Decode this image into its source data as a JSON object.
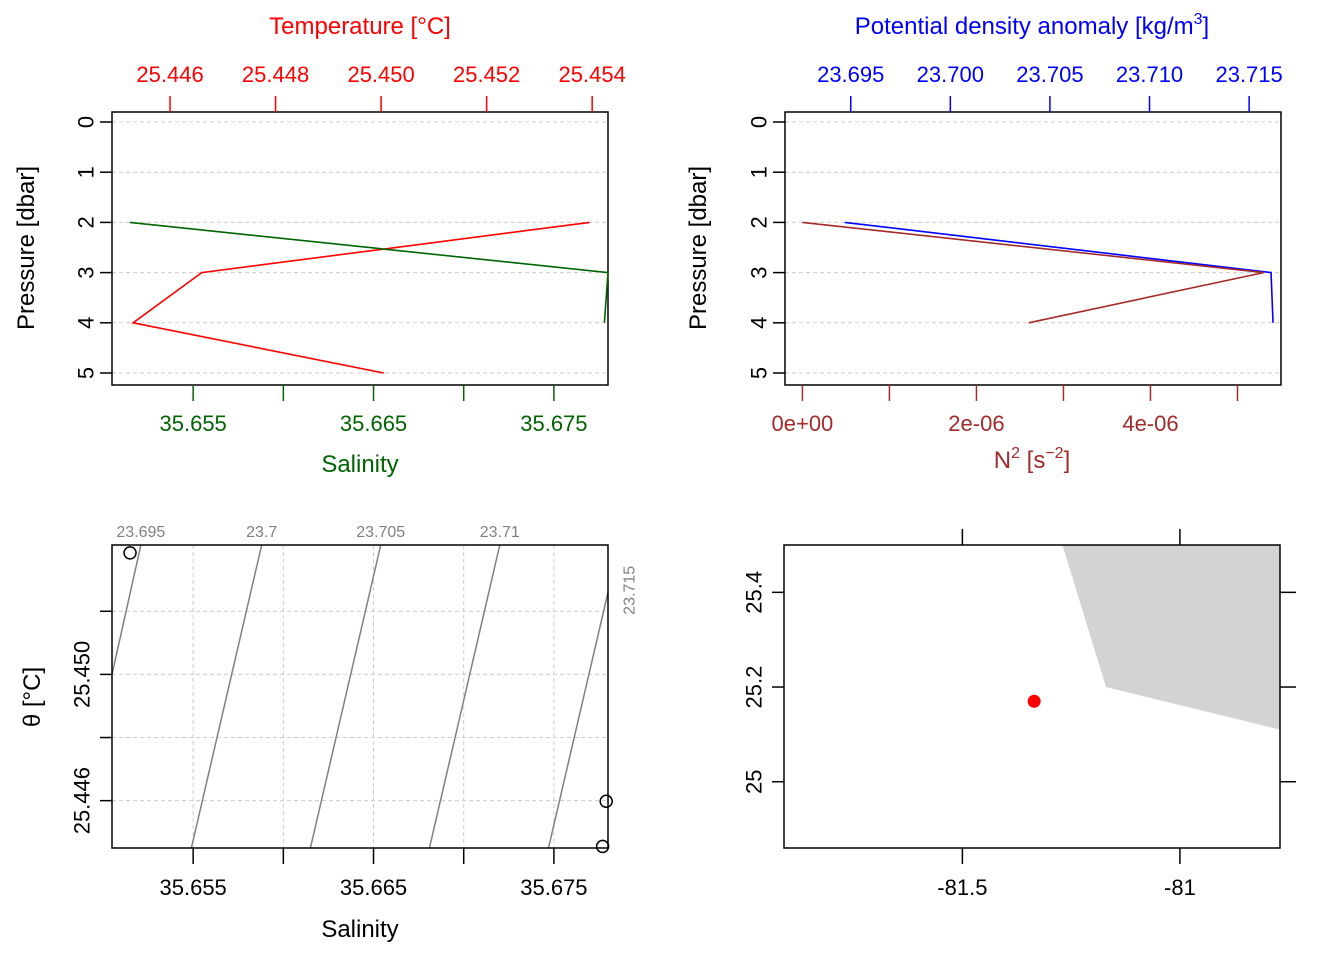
{
  "colors": {
    "temperature": "#ff0000",
    "salinity": "#006400",
    "density": "#0000ff",
    "n2": "#a52a2a",
    "isopycnal": "#808080",
    "land": "#d3d3d3",
    "station": "#ff0000",
    "grid": "#cccccc"
  },
  "chart_data": [
    {
      "type": "line",
      "panel": "top-left",
      "title": "",
      "ylabel": "Pressure [dbar]",
      "ylim": [
        5,
        0
      ],
      "yticks": [
        "0",
        "1",
        "2",
        "3",
        "4",
        "5"
      ],
      "top_axis": {
        "label": "Temperature [°C]",
        "range": [
          25.4449,
          25.4543
        ],
        "ticks": [
          25.446,
          25.448,
          25.45,
          25.452,
          25.454
        ],
        "tick_labels": [
          "25.446",
          "25.448",
          "25.450",
          "25.452",
          "25.454"
        ]
      },
      "bottom_axis": {
        "label": "Salinity",
        "range": [
          35.6505,
          35.678
        ],
        "ticks": [
          35.655,
          35.66,
          35.665,
          35.67,
          35.675
        ],
        "tick_labels": [
          "35.655",
          "",
          "35.665",
          "",
          "35.675"
        ]
      },
      "series": [
        {
          "name": "Temperature",
          "x": [
            25.45395,
            25.4466,
            25.4453,
            25.45005
          ],
          "y": [
            2,
            3,
            4,
            5
          ]
        },
        {
          "name": "Salinity",
          "x": [
            35.6515,
            35.678,
            35.6778
          ],
          "y": [
            2,
            3,
            4
          ]
        }
      ]
    },
    {
      "type": "line",
      "panel": "top-right",
      "ylabel": "Pressure [dbar]",
      "ylim": [
        5,
        0
      ],
      "yticks": [
        "0",
        "1",
        "2",
        "3",
        "4",
        "5"
      ],
      "top_axis": {
        "label_main": "Potential density anomaly [kg/m",
        "label_sup": "3",
        "label_end": "]",
        "range": [
          23.6917,
          23.7166
        ],
        "ticks": [
          23.695,
          23.7,
          23.705,
          23.71,
          23.715
        ],
        "tick_labels": [
          "23.695",
          "23.700",
          "23.705",
          "23.710",
          "23.715"
        ]
      },
      "bottom_axis": {
        "label_main": "N",
        "label_sup1": "2",
        "label_mid": " [s",
        "label_sup2": "−2",
        "label_end": "]",
        "range": [
          -2e-07,
          5.5e-06
        ],
        "ticks": [
          0,
          1e-06,
          2e-06,
          3e-06,
          4e-06,
          5e-06
        ],
        "tick_labels": [
          "0e+00",
          "",
          "2e-06",
          "",
          "4e-06",
          ""
        ]
      },
      "series": [
        {
          "name": "Potential density anomaly",
          "x": [
            23.6947,
            23.7161,
            23.7162
          ],
          "y": [
            2,
            3,
            4
          ]
        },
        {
          "name": "N2",
          "x": [
            0.0,
            5.3e-06,
            2.6e-06
          ],
          "y": [
            2,
            3,
            4
          ]
        }
      ]
    },
    {
      "type": "scatter",
      "panel": "bottom-left",
      "xlabel": "Salinity",
      "ylabel": "θ [°C]",
      "xlim": [
        35.6505,
        35.678
      ],
      "ylim": [
        25.4445,
        25.4541
      ],
      "xticks": [
        35.655,
        35.66,
        35.665,
        35.67,
        35.675
      ],
      "xtick_labels": [
        "35.655",
        "",
        "35.665",
        "",
        "35.675"
      ],
      "yticks": [
        25.446,
        25.448,
        25.45,
        25.452
      ],
      "ytick_labels": [
        "25.446",
        "",
        "25.450",
        ""
      ],
      "points": [
        {
          "S": 35.6515,
          "T": 25.45385
        },
        {
          "S": 35.6779,
          "T": 25.44598
        },
        {
          "S": 35.6777,
          "T": 25.44455
        }
      ],
      "isopycnals": [
        {
          "label": "23.695",
          "S_top": 35.6521,
          "S_bottom": 35.6505,
          "T_bottom": 25.45
        },
        {
          "label": "23.7",
          "S_top": 35.6588,
          "S_bottom": 35.6549
        },
        {
          "label": "23.705",
          "S_top": 35.6654,
          "S_bottom": 35.6615
        },
        {
          "label": "23.71",
          "S_top": 35.672,
          "S_bottom": 35.6681
        },
        {
          "label": "23.715",
          "S_top": 35.678,
          "S_bottom": 35.6747,
          "T_top": 25.4526
        }
      ]
    },
    {
      "type": "map",
      "panel": "bottom-right",
      "xlim": [
        -81.91,
        -80.77
      ],
      "ylim": [
        24.86,
        25.5
      ],
      "xticks": [
        -81.5,
        -81
      ],
      "xtick_labels": [
        "-81.5",
        "-81"
      ],
      "yticks": [
        25,
        25.2,
        25.4
      ],
      "ytick_labels": [
        "25",
        "25.2",
        "25.4"
      ],
      "station": {
        "lon": -81.335,
        "lat": 25.17
      },
      "land_polygon": [
        [
          -81.27,
          25.5
        ],
        [
          -81.17,
          25.2
        ],
        [
          -80.77,
          25.11
        ],
        [
          -80.77,
          25.5
        ]
      ]
    }
  ]
}
